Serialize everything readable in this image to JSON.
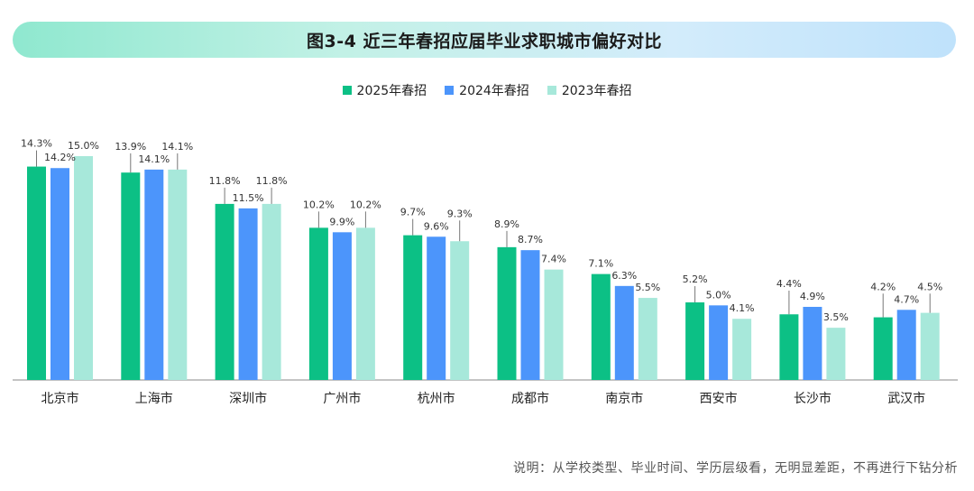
{
  "header": {
    "title": "图3-4 近三年春招应届毕业求职城市偏好对比"
  },
  "note": "说明：从学校类型、毕业时间、学历层级看，无明显差距，不再进行下钻分析",
  "colors": {
    "s2025": "#0cc085",
    "s2024": "#4c95fb",
    "s2023": "#a7e8da",
    "axis": "#888888",
    "leader": "#777777"
  },
  "chart_data": {
    "type": "bar",
    "categories": [
      "北京市",
      "上海市",
      "深圳市",
      "广州市",
      "杭州市",
      "成都市",
      "南京市",
      "西安市",
      "长沙市",
      "武汉市"
    ],
    "series": [
      {
        "name": "2025年春招",
        "values": [
          14.3,
          13.9,
          11.8,
          10.2,
          9.7,
          8.9,
          7.1,
          5.2,
          4.4,
          4.2
        ],
        "labels": [
          "14.3%",
          "13.9%",
          "11.8%",
          "10.2%",
          "9.7%",
          "8.9%",
          "7.1%",
          "5.2%",
          "4.4%",
          "4.2%"
        ]
      },
      {
        "name": "2024年春招",
        "values": [
          14.2,
          14.1,
          11.5,
          9.9,
          9.6,
          8.7,
          6.3,
          5.0,
          4.9,
          4.7
        ],
        "labels": [
          "14.2%",
          "14.1%",
          "11.5%",
          "9.9%",
          "9.6%",
          "8.7%",
          "6.3%",
          "5.0%",
          "4.9%",
          "4.7%"
        ]
      },
      {
        "name": "2023年春招",
        "values": [
          15.0,
          14.1,
          11.8,
          10.2,
          9.3,
          7.4,
          5.5,
          4.1,
          3.5,
          4.5
        ],
        "labels": [
          "15.0%",
          "14.1%",
          "11.8%",
          "10.2%",
          "9.3%",
          "7.4%",
          "5.5%",
          "4.1%",
          "3.5%",
          "4.5%"
        ]
      }
    ],
    "ylim": [
      0,
      15.0
    ],
    "legend_position": "top-center",
    "grid": false,
    "title": "图3-4 近三年春招应届毕业求职城市偏好对比"
  }
}
